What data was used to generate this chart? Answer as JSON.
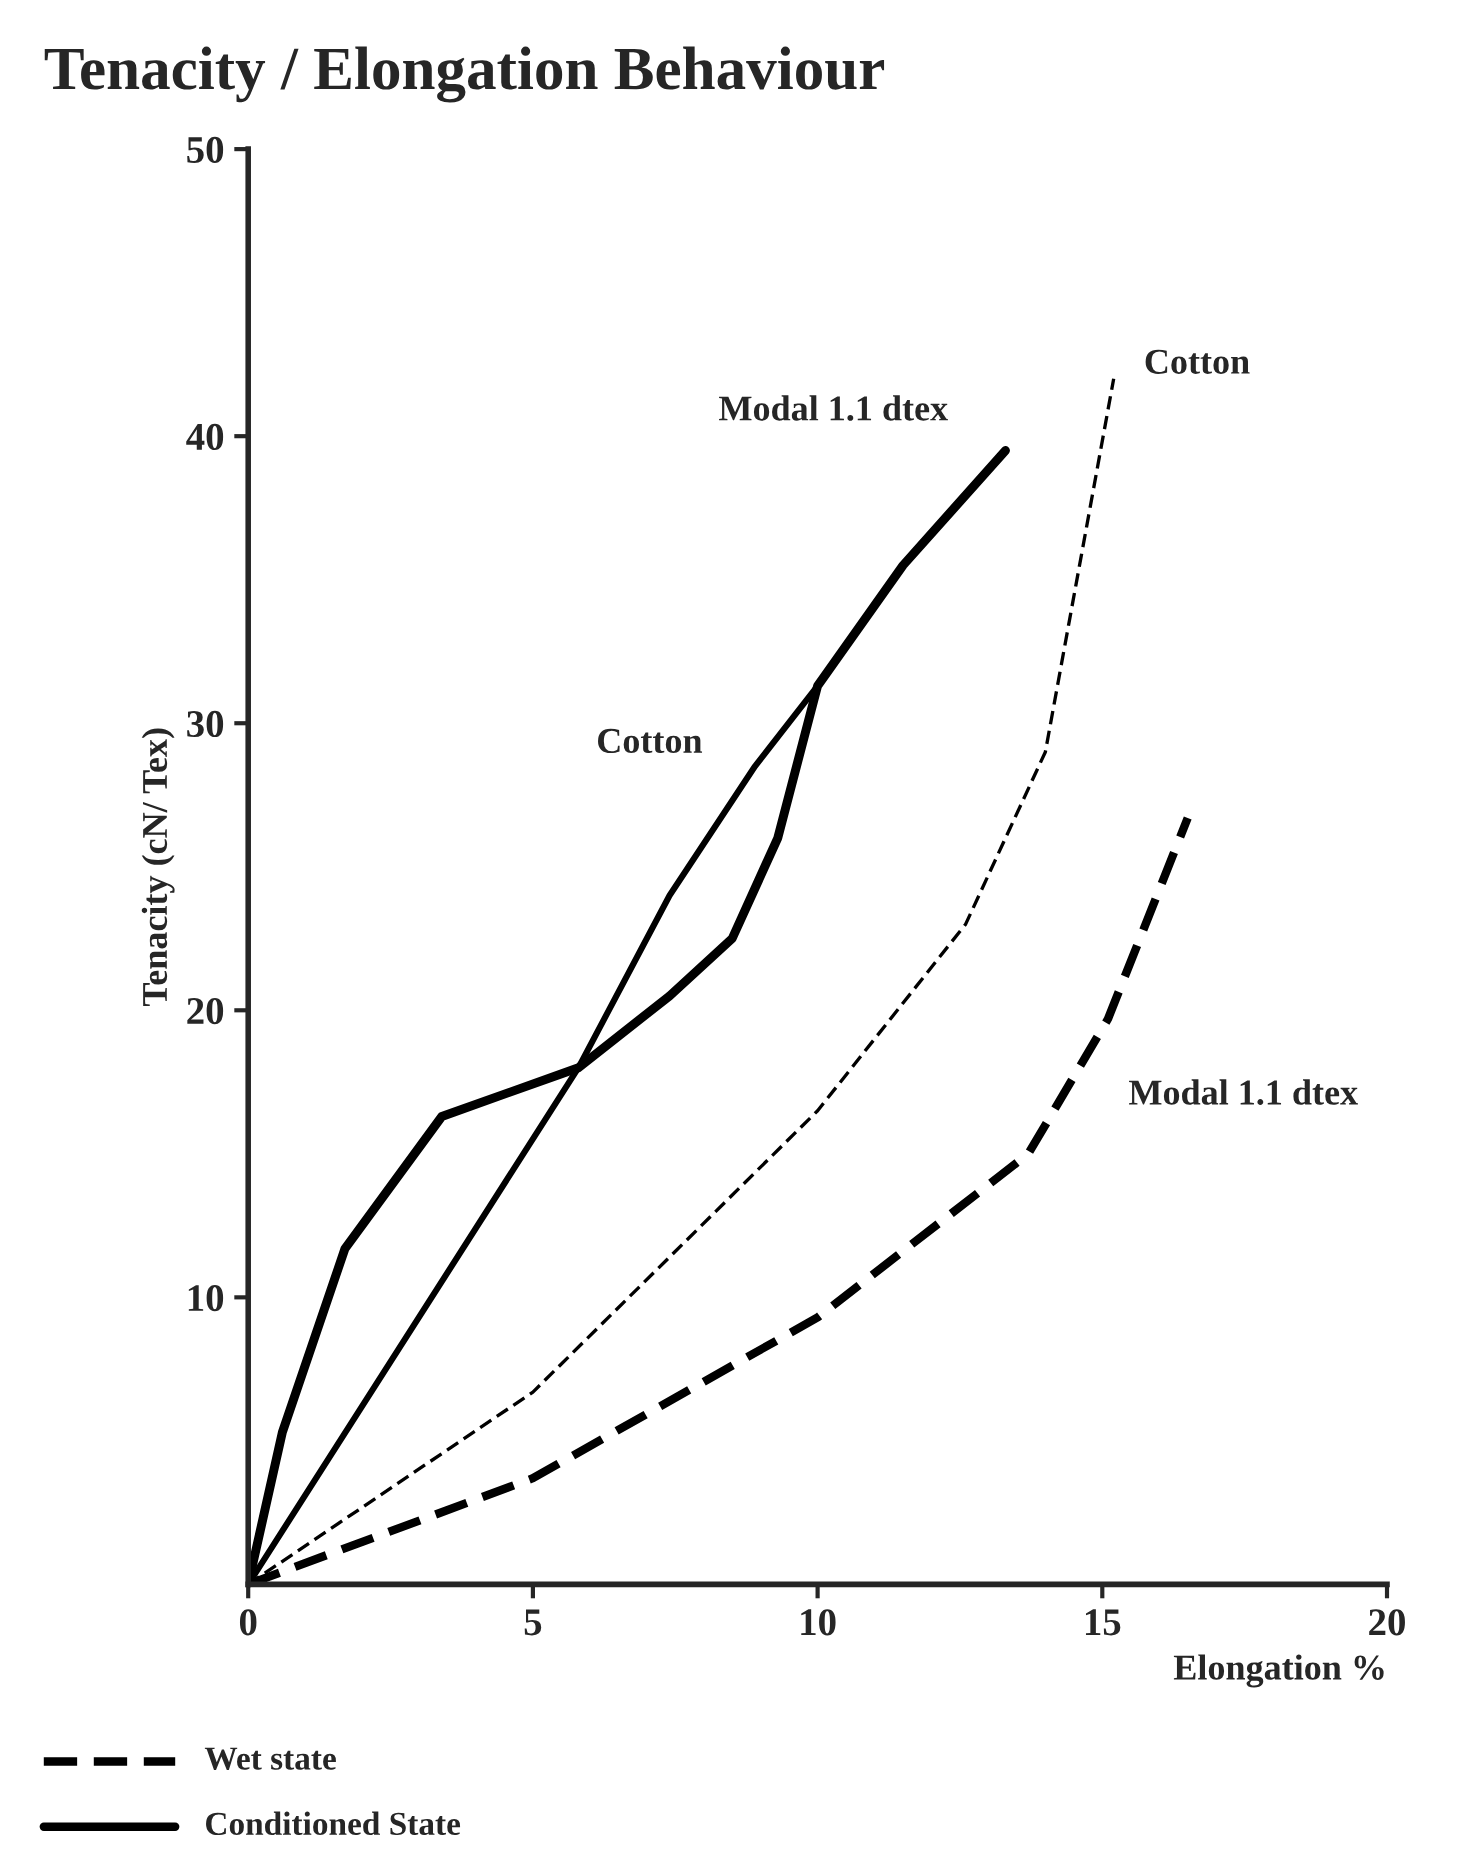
{
  "chart_data": {
    "type": "line",
    "title": "Tenacity / Elongation Behaviour",
    "xlabel": "Elongation %",
    "ylabel": "Tenacity (cN/ Tex)",
    "xlim": [
      0,
      20
    ],
    "ylim": [
      0,
      50
    ],
    "xticks": [
      0,
      5,
      10,
      15,
      20
    ],
    "yticks": [
      10,
      20,
      30,
      40,
      50
    ],
    "grid": false,
    "series": [
      {
        "name": "Modal 1.1 dtex",
        "color": "#000000",
        "line_style": "solid",
        "x": [
          0,
          0.6,
          1.7,
          3.4,
          5.8,
          7.4,
          8.5,
          9.3,
          10,
          11.5,
          13.3
        ],
        "values": [
          0,
          5.3,
          11.7,
          16.3,
          18,
          20.5,
          22.5,
          26,
          31.3,
          35.5,
          39.5
        ]
      },
      {
        "name": "Cotton",
        "color": "#000000",
        "line_style": "solid",
        "x": [
          0,
          5.8,
          7.4,
          8.9,
          10,
          11.5,
          13.3
        ],
        "values": [
          0,
          18,
          24,
          28.5,
          31.3,
          35.5,
          39.5
        ]
      },
      {
        "name": "Cotton",
        "color": "#000000",
        "line_style": "dashed",
        "x": [
          0,
          5,
          10,
          12.6,
          14,
          15.2
        ],
        "values": [
          0,
          6.7,
          16.5,
          23,
          29,
          42
        ]
      },
      {
        "name": "Modal 1.1 dtex",
        "color": "#000000",
        "line_style": "dashed",
        "x": [
          0,
          5,
          10,
          13.7,
          15.1,
          16.5
        ],
        "values": [
          0,
          3.7,
          9.3,
          15,
          19.7,
          26.7
        ]
      }
    ],
    "annotations": [
      "Wet state",
      "Conditioned State"
    ]
  }
}
